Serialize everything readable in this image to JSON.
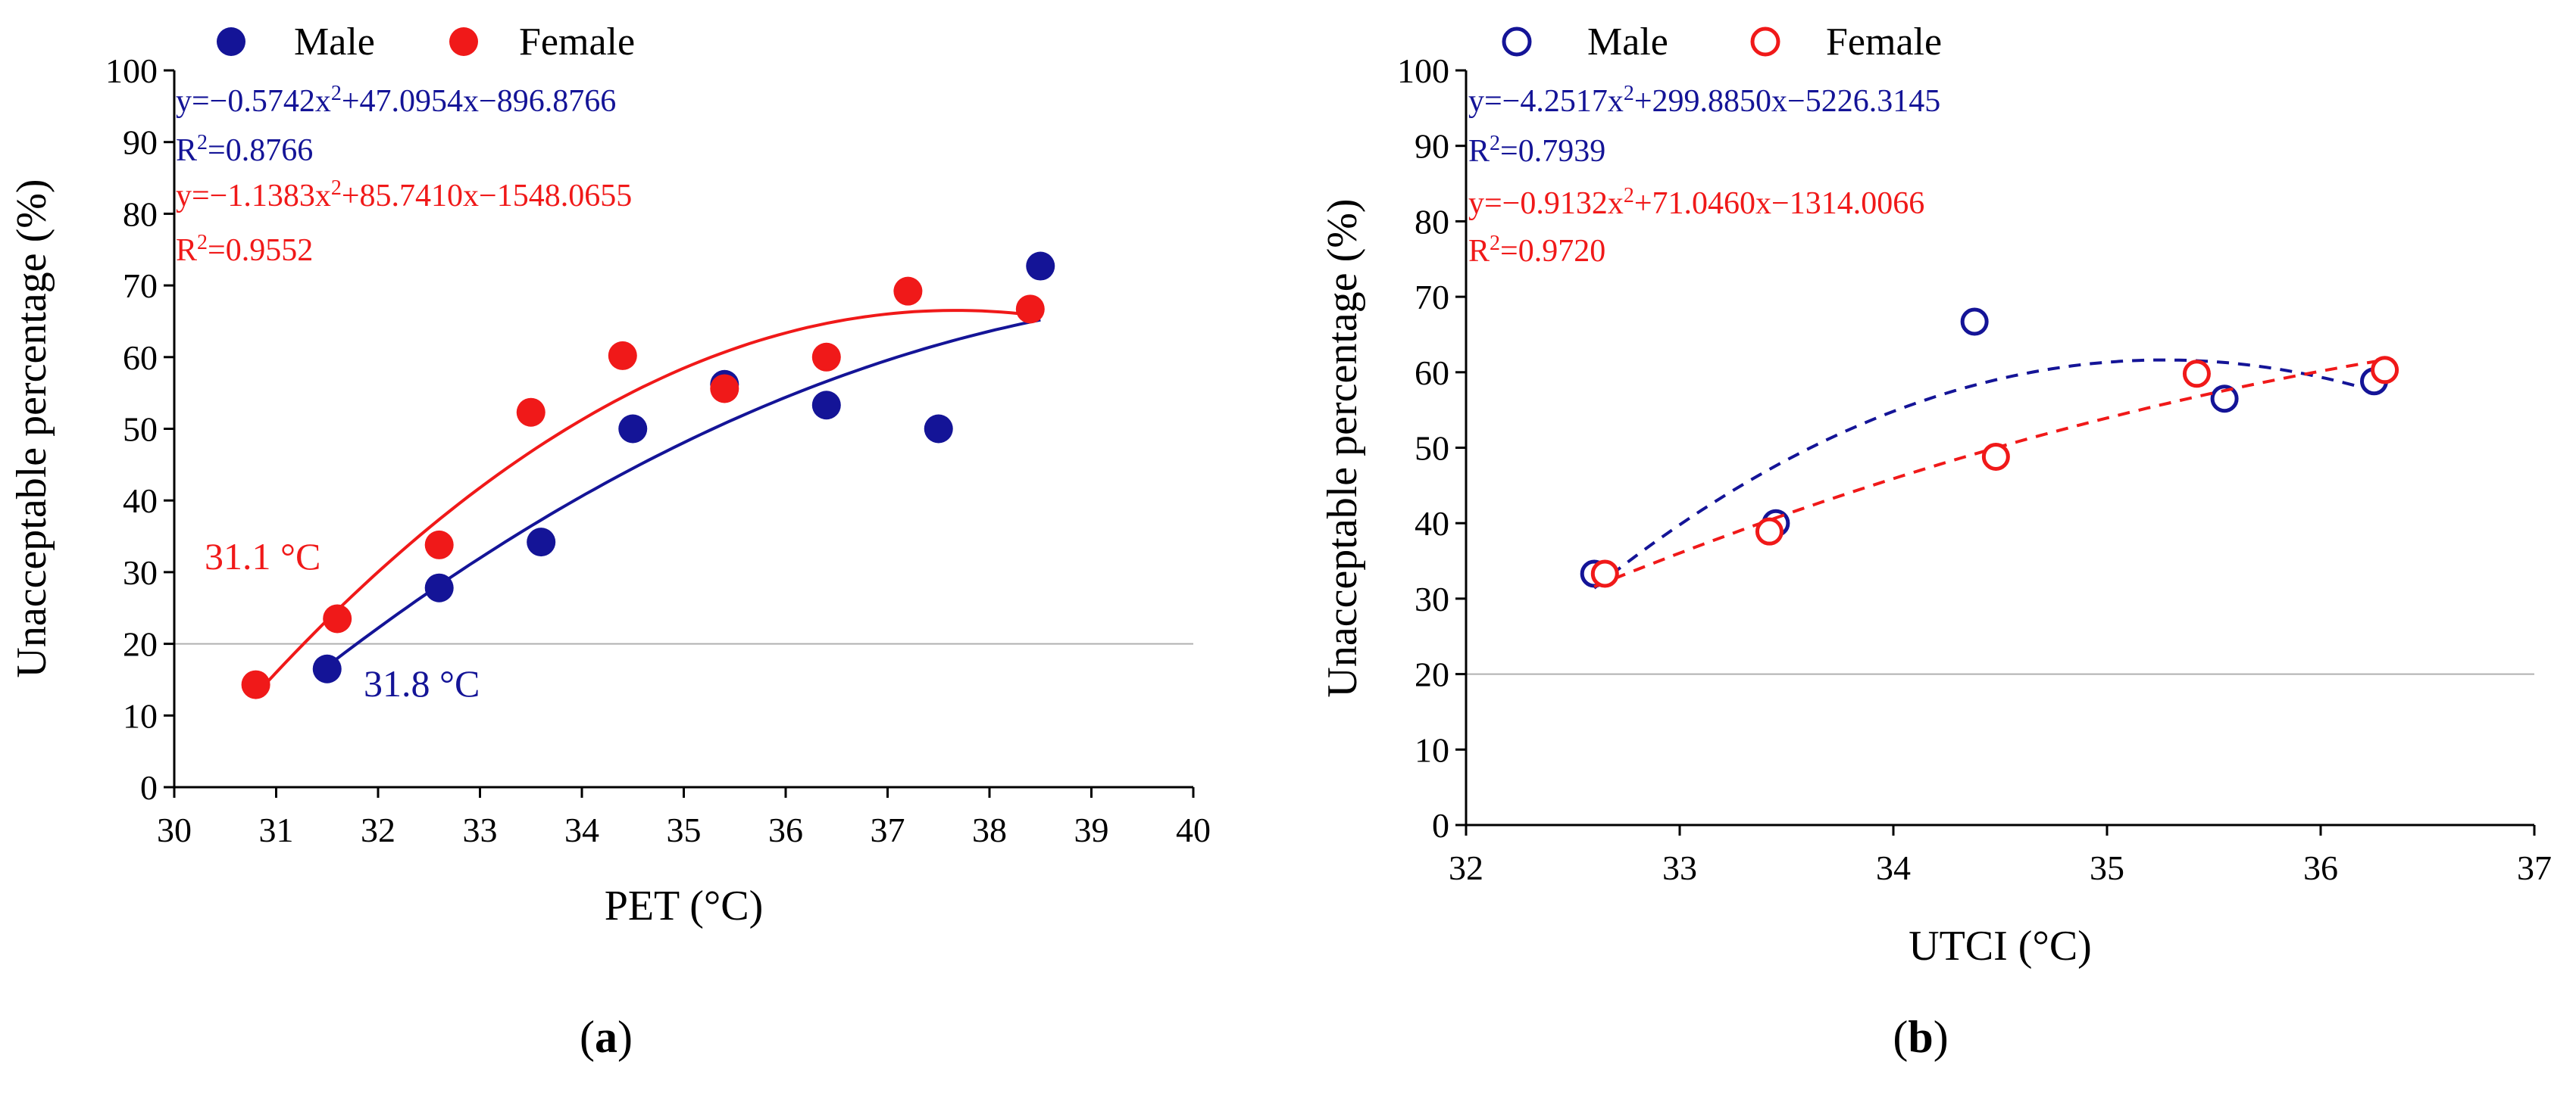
{
  "colors": {
    "male": "#141497",
    "female": "#f01919",
    "reference": "#b0b0b0"
  },
  "chart_data": [
    {
      "type": "scatter",
      "panel": "a",
      "panel_label": "a",
      "xlabel": "PET (°C)",
      "ylabel": "Unacceptable percentage  (%)",
      "xlim": [
        30,
        40
      ],
      "ylim": [
        0,
        100
      ],
      "xticks": [
        30,
        31,
        32,
        33,
        34,
        35,
        36,
        37,
        38,
        39,
        40
      ],
      "yticks": [
        0,
        10,
        20,
        30,
        40,
        50,
        60,
        70,
        80,
        90,
        100
      ],
      "reference_y": 20,
      "marker": "filled",
      "legend": [
        {
          "name": "Male",
          "icon": "filled-circle-icon"
        },
        {
          "name": "Female",
          "icon": "filled-circle-icon"
        }
      ],
      "series": [
        {
          "name": "Male",
          "points": [
            [
              31.5,
              16.5
            ],
            [
              32.6,
              27.8
            ],
            [
              33.6,
              34.2
            ],
            [
              34.5,
              50.0
            ],
            [
              35.4,
              56.2
            ],
            [
              36.4,
              53.3
            ],
            [
              37.5,
              50.0
            ],
            [
              38.5,
              72.7
            ]
          ],
          "fit": {
            "a": -0.5742,
            "b": 47.0954,
            "c": -896.8766,
            "x_range": [
              31.5,
              38.5
            ],
            "style": "solid"
          },
          "equation": "y=−0.5742x²+47.0954x−896.8766",
          "r2": "R²=0.8766",
          "threshold_label": "31.8 °C"
        },
        {
          "name": "Female",
          "points": [
            [
              30.8,
              14.3
            ],
            [
              31.6,
              23.5
            ],
            [
              32.6,
              33.8
            ],
            [
              33.5,
              52.3
            ],
            [
              34.4,
              60.2
            ],
            [
              35.4,
              55.6
            ],
            [
              36.4,
              60.0
            ],
            [
              37.2,
              69.2
            ],
            [
              38.4,
              66.7
            ]
          ],
          "fit": {
            "a": -1.1383,
            "b": 85.741,
            "c": -1548.0655,
            "x_range": [
              30.8,
              38.4
            ],
            "style": "solid"
          },
          "equation": "y=−1.1383x²+85.7410x−1548.0655",
          "r2": "R²=0.9552",
          "threshold_label": "31.1 °C"
        }
      ]
    },
    {
      "type": "scatter",
      "panel": "b",
      "panel_label": "b",
      "xlabel": "UTCI (°C)",
      "ylabel": "Unacceptable percentage  (%)",
      "xlim": [
        32,
        37
      ],
      "ylim": [
        0,
        100
      ],
      "xticks": [
        32,
        33,
        34,
        35,
        36,
        37
      ],
      "yticks": [
        0,
        10,
        20,
        30,
        40,
        50,
        60,
        70,
        80,
        90,
        100
      ],
      "reference_y": 20,
      "marker": "hollow",
      "legend": [
        {
          "name": "Male",
          "icon": "hollow-circle-icon"
        },
        {
          "name": "Female",
          "icon": "hollow-circle-icon"
        }
      ],
      "series": [
        {
          "name": "Male",
          "points": [
            [
              32.6,
              33.3
            ],
            [
              33.45,
              40.0
            ],
            [
              34.38,
              66.7
            ],
            [
              35.55,
              56.5
            ],
            [
              36.25,
              58.8
            ]
          ],
          "fit": {
            "a": -4.2517,
            "b": 299.885,
            "c": -5226.3145,
            "x_range": [
              32.6,
              36.25
            ],
            "style": "dashed"
          },
          "equation": "y=−4.2517x²+299.8850x−5226.3145",
          "r2": "R²=0.7939"
        },
        {
          "name": "Female",
          "points": [
            [
              32.65,
              33.3
            ],
            [
              33.42,
              38.9
            ],
            [
              34.48,
              48.8
            ],
            [
              35.42,
              59.8
            ],
            [
              36.3,
              60.3
            ]
          ],
          "fit": {
            "a": -0.9132,
            "b": 71.046,
            "c": -1314.0066,
            "x_range": [
              32.6,
              36.3
            ],
            "style": "dashed"
          },
          "equation": "y=−0.9132x²+71.0460x−1314.0066",
          "r2": "R²=0.9720"
        }
      ]
    }
  ]
}
